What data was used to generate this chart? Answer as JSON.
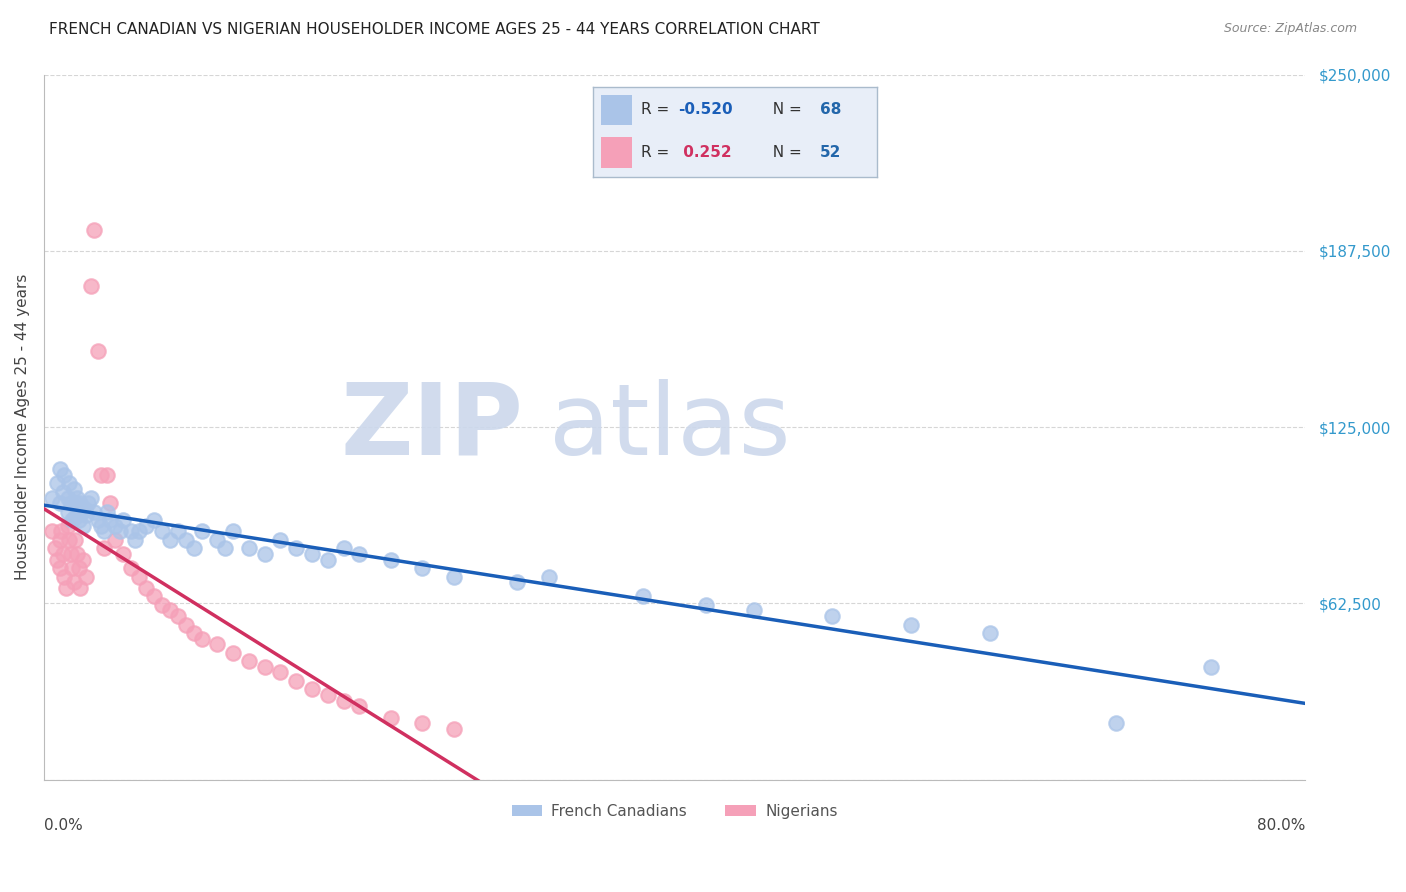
{
  "title": "FRENCH CANADIAN VS NIGERIAN HOUSEHOLDER INCOME AGES 25 - 44 YEARS CORRELATION CHART",
  "source": "Source: ZipAtlas.com",
  "ylabel": "Householder Income Ages 25 - 44 years",
  "xlim": [
    0.0,
    0.8
  ],
  "ylim": [
    0,
    250000
  ],
  "yticks": [
    0,
    62500,
    125000,
    187500,
    250000
  ],
  "ytick_labels": [
    "",
    "$62,500",
    "$125,000",
    "$187,500",
    "$250,000"
  ],
  "r_blue": -0.52,
  "n_blue": 68,
  "r_pink": 0.252,
  "n_pink": 52,
  "blue_scatter_color": "#aac4e8",
  "pink_scatter_color": "#f5a0b8",
  "blue_line_color": "#1a5eb8",
  "pink_line_color": "#d03060",
  "pink_dash_color": "#e08898",
  "title_color": "#222222",
  "source_color": "#888888",
  "ylabel_color": "#444444",
  "ytick_color": "#3399cc",
  "xtick_color": "#444444",
  "watermark_zip_color": "#ccd8ec",
  "watermark_atlas_color": "#ccd8ec",
  "legend_box_color": "#e8eef8",
  "legend_border_color": "#aabbcc",
  "legend_r_blue_color": "#1a5eb8",
  "legend_r_pink_color": "#d03060",
  "legend_n_color": "#2266aa",
  "french_canadians_x": [
    0.005,
    0.008,
    0.01,
    0.01,
    0.012,
    0.013,
    0.015,
    0.015,
    0.016,
    0.017,
    0.018,
    0.019,
    0.02,
    0.02,
    0.021,
    0.022,
    0.022,
    0.023,
    0.024,
    0.025,
    0.026,
    0.027,
    0.028,
    0.03,
    0.032,
    0.034,
    0.036,
    0.038,
    0.04,
    0.042,
    0.045,
    0.048,
    0.05,
    0.055,
    0.058,
    0.06,
    0.065,
    0.07,
    0.075,
    0.08,
    0.085,
    0.09,
    0.095,
    0.1,
    0.11,
    0.115,
    0.12,
    0.13,
    0.14,
    0.15,
    0.16,
    0.17,
    0.18,
    0.19,
    0.2,
    0.22,
    0.24,
    0.26,
    0.3,
    0.32,
    0.38,
    0.42,
    0.45,
    0.5,
    0.55,
    0.6,
    0.68,
    0.74
  ],
  "french_canadians_y": [
    100000,
    105000,
    110000,
    98000,
    102000,
    108000,
    95000,
    100000,
    105000,
    98000,
    92000,
    103000,
    98000,
    93000,
    100000,
    96000,
    92000,
    98000,
    95000,
    90000,
    96000,
    94000,
    98000,
    100000,
    95000,
    92000,
    90000,
    88000,
    95000,
    92000,
    90000,
    88000,
    92000,
    88000,
    85000,
    88000,
    90000,
    92000,
    88000,
    85000,
    88000,
    85000,
    82000,
    88000,
    85000,
    82000,
    88000,
    82000,
    80000,
    85000,
    82000,
    80000,
    78000,
    82000,
    80000,
    78000,
    75000,
    72000,
    70000,
    72000,
    65000,
    62000,
    60000,
    58000,
    55000,
    52000,
    20000,
    40000
  ],
  "nigerians_x": [
    0.005,
    0.007,
    0.008,
    0.01,
    0.01,
    0.011,
    0.012,
    0.013,
    0.014,
    0.015,
    0.016,
    0.017,
    0.018,
    0.019,
    0.02,
    0.021,
    0.022,
    0.023,
    0.025,
    0.027,
    0.03,
    0.032,
    0.034,
    0.036,
    0.038,
    0.04,
    0.042,
    0.045,
    0.05,
    0.055,
    0.06,
    0.065,
    0.07,
    0.075,
    0.08,
    0.085,
    0.09,
    0.095,
    0.1,
    0.11,
    0.12,
    0.13,
    0.14,
    0.15,
    0.16,
    0.17,
    0.18,
    0.19,
    0.2,
    0.22,
    0.24,
    0.26
  ],
  "nigerians_y": [
    88000,
    82000,
    78000,
    85000,
    75000,
    88000,
    80000,
    72000,
    68000,
    90000,
    85000,
    80000,
    75000,
    70000,
    85000,
    80000,
    75000,
    68000,
    78000,
    72000,
    175000,
    195000,
    152000,
    108000,
    82000,
    108000,
    98000,
    85000,
    80000,
    75000,
    72000,
    68000,
    65000,
    62000,
    60000,
    58000,
    55000,
    52000,
    50000,
    48000,
    45000,
    42000,
    40000,
    38000,
    35000,
    32000,
    30000,
    28000,
    26000,
    22000,
    20000,
    18000
  ]
}
